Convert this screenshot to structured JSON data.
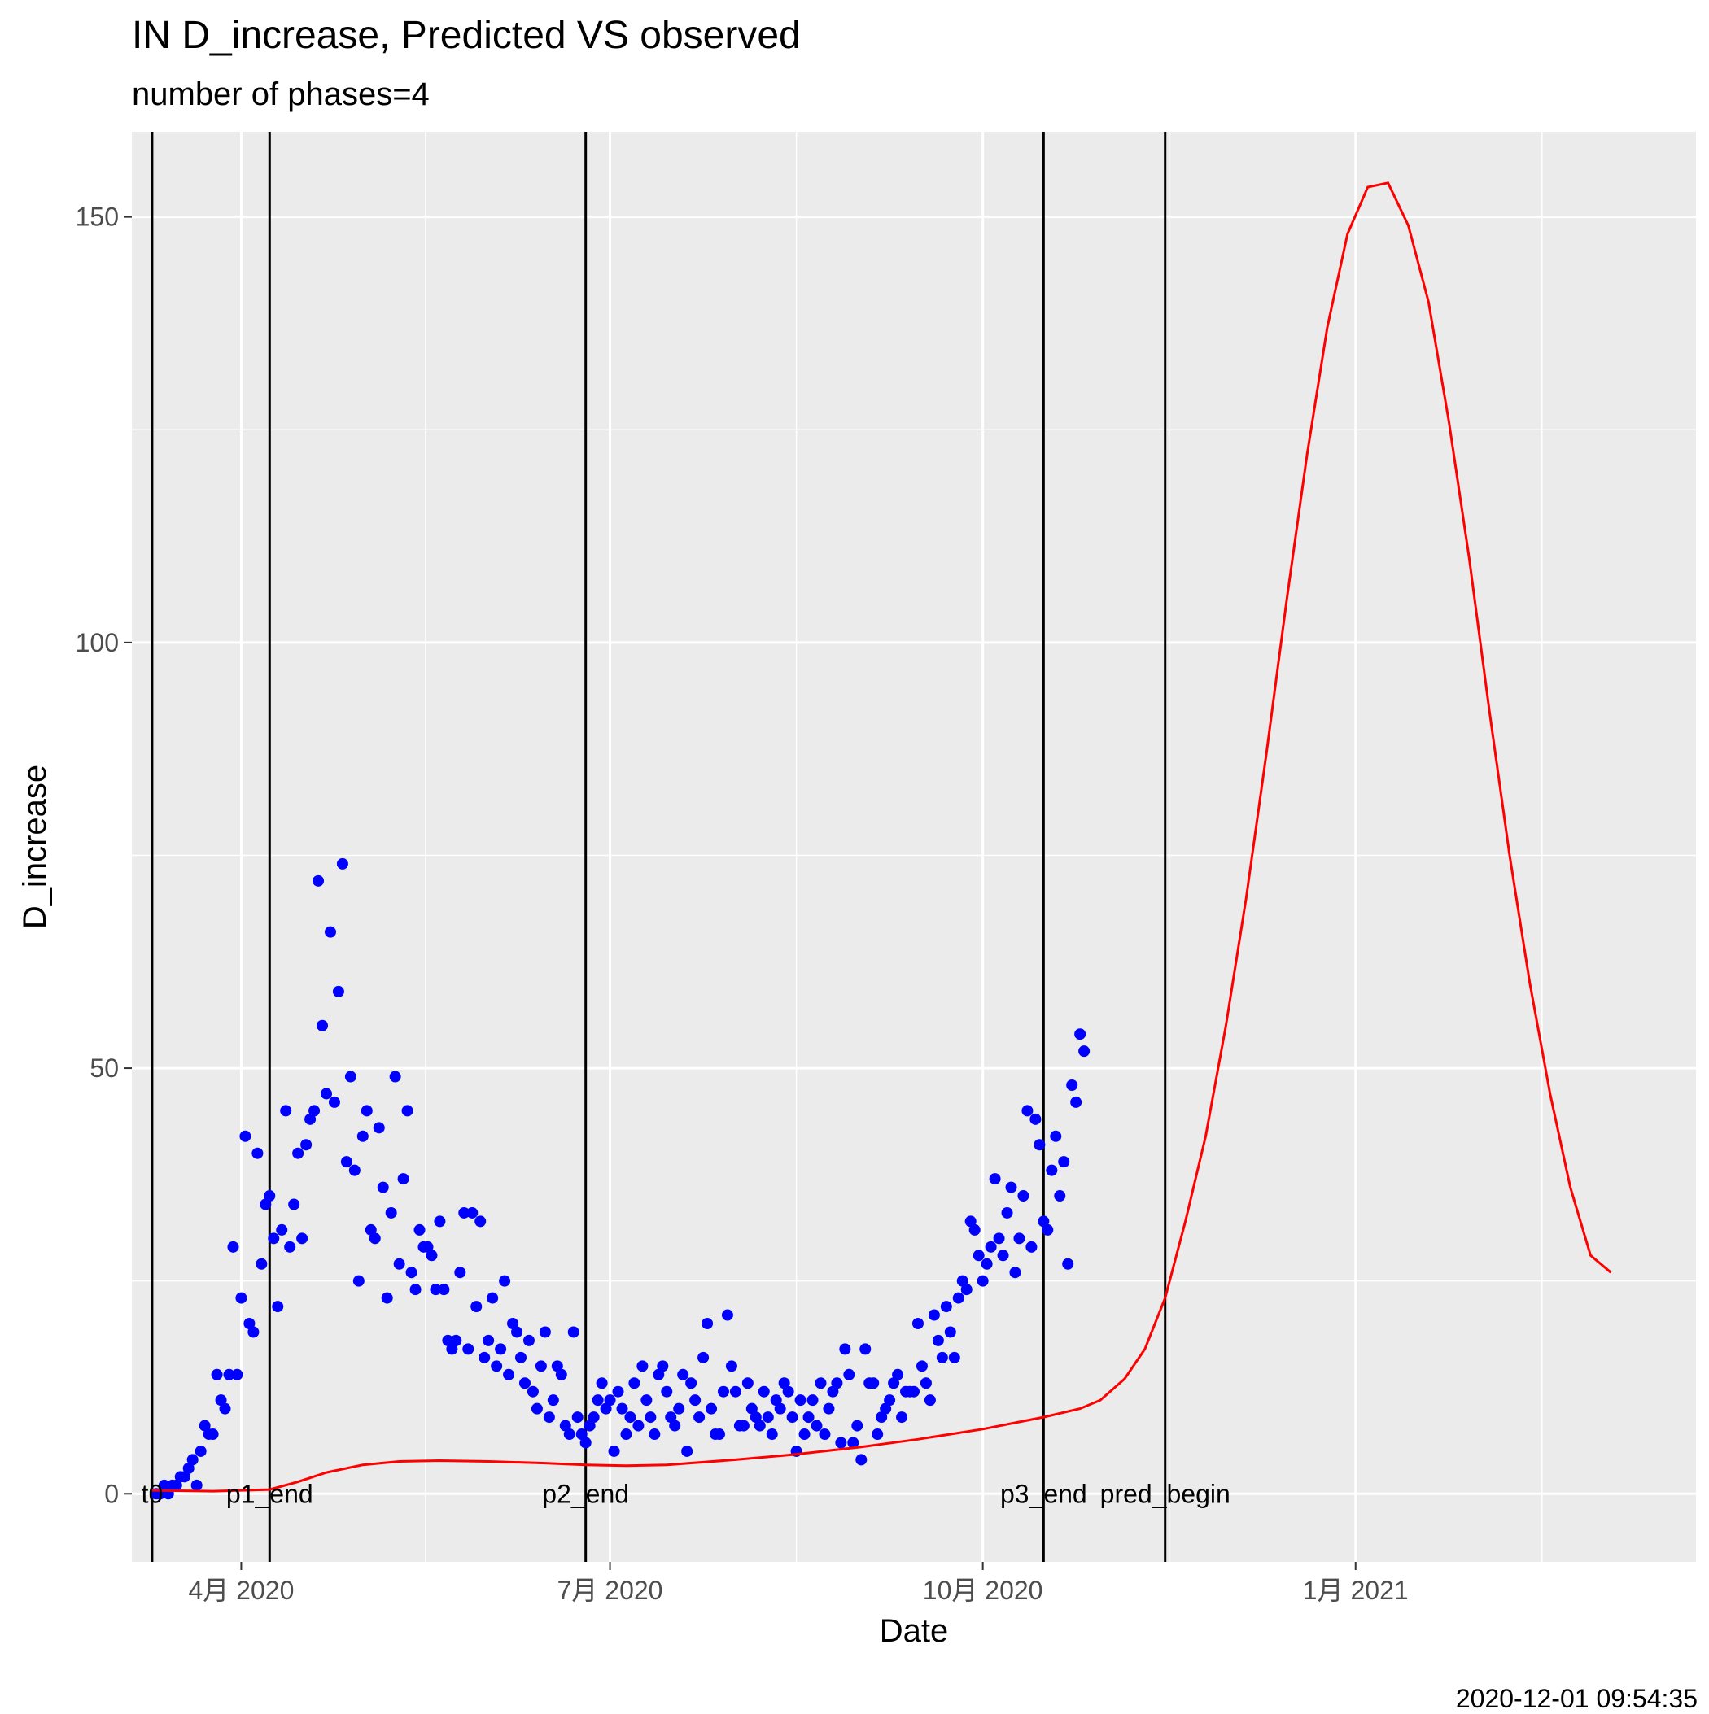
{
  "title": "IN D_increase, Predicted VS observed",
  "subtitle": "number of phases=4",
  "caption": "2020-12-01 09:54:35",
  "colors": {
    "panel": "#EBEBEB",
    "grid": "#FFFFFF",
    "observed": "#0000FF",
    "predicted": "#FF0000",
    "vline": "#000000"
  },
  "chart_data": {
    "type": "scatter",
    "xlabel": "Date",
    "ylabel": "D_increase",
    "xlim": [
      "2020-03-05",
      "2021-03-26"
    ],
    "ylim": [
      -8,
      160
    ],
    "yticks": [
      0,
      50,
      100,
      150
    ],
    "xticks": [
      {
        "date": "2020-04-01",
        "label": "4月 2020"
      },
      {
        "date": "2020-07-01",
        "label": "7月 2020"
      },
      {
        "date": "2020-10-01",
        "label": "10月 2020"
      },
      {
        "date": "2021-01-01",
        "label": "1月 2021"
      }
    ],
    "grid": true,
    "phase_lines": [
      {
        "date": "2020-03-10",
        "label": "t0"
      },
      {
        "date": "2020-04-08",
        "label": "p1_end"
      },
      {
        "date": "2020-06-25",
        "label": "p2_end"
      },
      {
        "date": "2020-10-16",
        "label": "p3_end"
      },
      {
        "date": "2020-11-15",
        "label": "pred_begin"
      }
    ],
    "series": [
      {
        "kind": "points",
        "start": "2020-03-11",
        "values": [
          0,
          0,
          1,
          0,
          1,
          1,
          2,
          2,
          3,
          4,
          1,
          5,
          8,
          7,
          7,
          14,
          11,
          10,
          14,
          29,
          14,
          23,
          42,
          20,
          19,
          40,
          27,
          34,
          35,
          30,
          22,
          31,
          45,
          29,
          34,
          40,
          30,
          41,
          44,
          45,
          72,
          55,
          47,
          66,
          46,
          59,
          74,
          39,
          49,
          38,
          25,
          42,
          45,
          31,
          30,
          43,
          36,
          23,
          33,
          49,
          27,
          37,
          45,
          26,
          24,
          31,
          29,
          29,
          28,
          24,
          32,
          24,
          18,
          17,
          18,
          26,
          33,
          17,
          33,
          22,
          32,
          16,
          18,
          23,
          15,
          17,
          25,
          14,
          20,
          19,
          16,
          13,
          18,
          12,
          10,
          15,
          19,
          9,
          11,
          15,
          14,
          8,
          7,
          19,
          9,
          7,
          6,
          8,
          9,
          11,
          13,
          10,
          11,
          5,
          12,
          10,
          7,
          9,
          13,
          8,
          15,
          11,
          9,
          7,
          14,
          15,
          12,
          9,
          8,
          10,
          14,
          5,
          13,
          11,
          9,
          16,
          20,
          10,
          7,
          7,
          12,
          21,
          15,
          12,
          8,
          8,
          13,
          10,
          9,
          8,
          12,
          9,
          7,
          11,
          10,
          13,
          12,
          9,
          5,
          11,
          7,
          9,
          11,
          8,
          13,
          7,
          10,
          12,
          13,
          6,
          17,
          14,
          6,
          8,
          4,
          17,
          13,
          13,
          7,
          9,
          10,
          11,
          13,
          14,
          9,
          12,
          12,
          12,
          20,
          15,
          13,
          11,
          21,
          18,
          16,
          22,
          19,
          16,
          23,
          25,
          24,
          32,
          31,
          28,
          25,
          27,
          29,
          37,
          30,
          28,
          33,
          36,
          26,
          30,
          35,
          45,
          29,
          44,
          41,
          32,
          31,
          38,
          42,
          35,
          39,
          27,
          48,
          46,
          54,
          52
        ]
      },
      {
        "kind": "line",
        "points": [
          [
            "2020-03-10",
            0.4
          ],
          [
            "2020-03-25",
            0.3
          ],
          [
            "2020-04-08",
            0.5
          ],
          [
            "2020-04-15",
            1.4
          ],
          [
            "2020-04-22",
            2.5
          ],
          [
            "2020-05-01",
            3.4
          ],
          [
            "2020-05-10",
            3.8
          ],
          [
            "2020-05-20",
            3.9
          ],
          [
            "2020-06-01",
            3.8
          ],
          [
            "2020-06-15",
            3.6
          ],
          [
            "2020-06-25",
            3.4
          ],
          [
            "2020-07-05",
            3.3
          ],
          [
            "2020-07-15",
            3.4
          ],
          [
            "2020-08-01",
            4.0
          ],
          [
            "2020-08-15",
            4.6
          ],
          [
            "2020-09-01",
            5.5
          ],
          [
            "2020-09-15",
            6.4
          ],
          [
            "2020-10-01",
            7.6
          ],
          [
            "2020-10-16",
            9.0
          ],
          [
            "2020-10-25",
            10.0
          ],
          [
            "2020-10-30",
            11.0
          ],
          [
            "2020-11-05",
            13.5
          ],
          [
            "2020-11-10",
            17.0
          ],
          [
            "2020-11-15",
            23.0
          ],
          [
            "2020-11-20",
            32.0
          ],
          [
            "2020-11-25",
            42.0
          ],
          [
            "2020-11-30",
            55.0
          ],
          [
            "2020-12-05",
            70.0
          ],
          [
            "2020-12-10",
            87.0
          ],
          [
            "2020-12-15",
            105.0
          ],
          [
            "2020-12-20",
            122.0
          ],
          [
            "2020-12-25",
            137.0
          ],
          [
            "2020-12-30",
            148.0
          ],
          [
            "2021-01-04",
            153.5
          ],
          [
            "2021-01-09",
            154.0
          ],
          [
            "2021-01-14",
            149.0
          ],
          [
            "2021-01-19",
            140.0
          ],
          [
            "2021-01-24",
            126.0
          ],
          [
            "2021-01-29",
            110.0
          ],
          [
            "2021-02-03",
            92.0
          ],
          [
            "2021-02-08",
            75.0
          ],
          [
            "2021-02-13",
            60.0
          ],
          [
            "2021-02-18",
            47.0
          ],
          [
            "2021-02-23",
            36.0
          ],
          [
            "2021-02-28",
            28.0
          ],
          [
            "2021-03-05",
            26.0
          ]
        ]
      }
    ]
  }
}
